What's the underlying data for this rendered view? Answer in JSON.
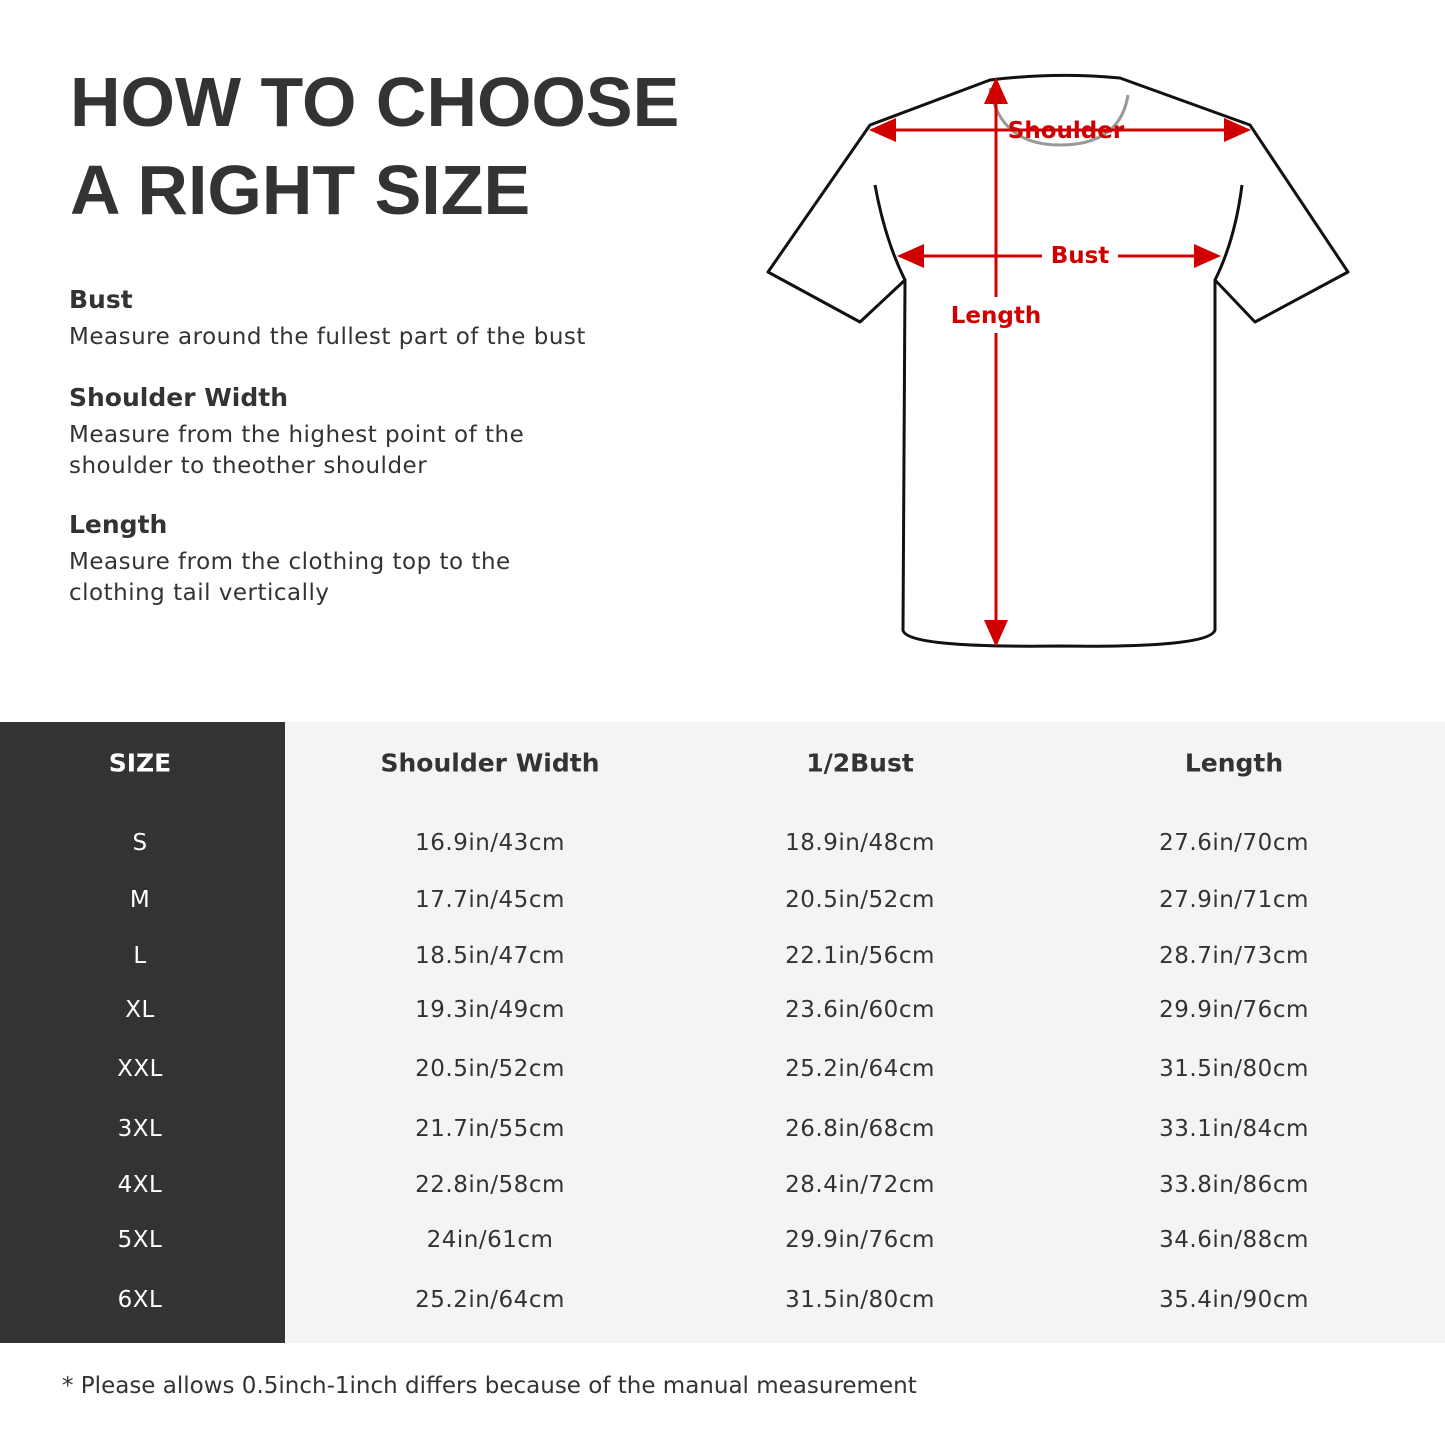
{
  "title": {
    "line1": "HOW TO CHOOSE",
    "line2": "A RIGHT SIZE"
  },
  "measures": [
    {
      "heading": "Bust",
      "text": "Measure around the fullest part of the bust"
    },
    {
      "heading": "Shoulder Width",
      "text": "Measure from the highest point of the shoulder to theother shoulder"
    },
    {
      "heading": "Length",
      "text": "Measure from the clothing top to the clothing tail vertically"
    }
  ],
  "diagram": {
    "shoulder": "Shoulder",
    "bust": "Bust",
    "length": "Length",
    "arrow_color": "#d00000"
  },
  "table": {
    "headers": [
      "SIZE",
      "Shoulder Width",
      "1/2Bust",
      "Length"
    ],
    "rows": [
      [
        "S",
        "16.9in/43cm",
        "18.9in/48cm",
        "27.6in/70cm"
      ],
      [
        "M",
        "17.7in/45cm",
        "20.5in/52cm",
        "27.9in/71cm"
      ],
      [
        "L",
        "18.5in/47cm",
        "22.1in/56cm",
        "28.7in/73cm"
      ],
      [
        "XL",
        "19.3in/49cm",
        "23.6in/60cm",
        "29.9in/76cm"
      ],
      [
        "XXL",
        "20.5in/52cm",
        "25.2in/64cm",
        "31.5in/80cm"
      ],
      [
        "3XL",
        "21.7in/55cm",
        "26.8in/68cm",
        "33.1in/84cm"
      ],
      [
        "4XL",
        "22.8in/58cm",
        "28.4in/72cm",
        "33.8in/86cm"
      ],
      [
        "5XL",
        "24in/61cm",
        "29.9in/76cm",
        "34.6in/88cm"
      ],
      [
        "6XL",
        "25.2in/64cm",
        "31.5in/80cm",
        "35.4in/90cm"
      ]
    ]
  },
  "note": "* Please allows 0.5inch-1inch differs because of the  manual measurement"
}
